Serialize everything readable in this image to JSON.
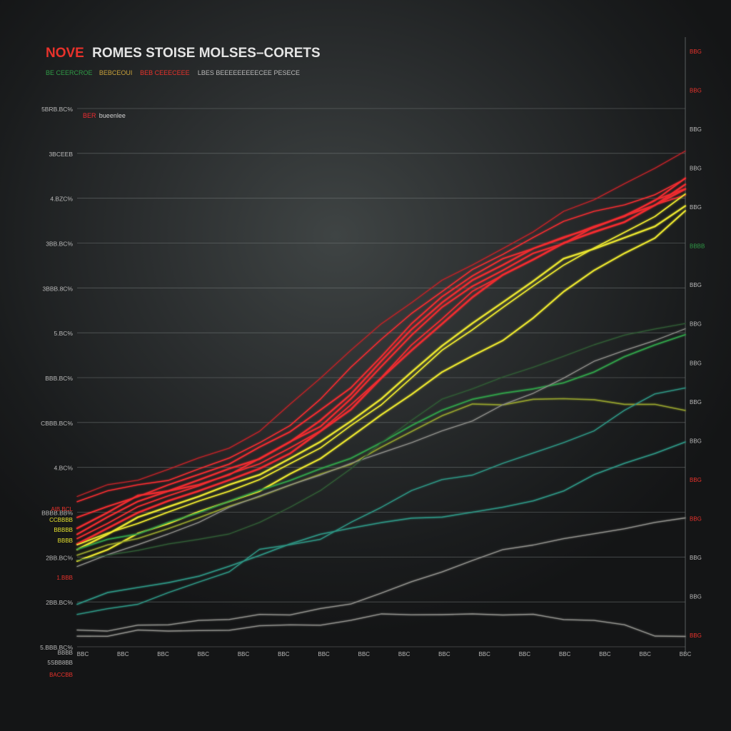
{
  "colors": {
    "title_accent": "#e8322b",
    "title_main": "#e4e4e4",
    "grid": "#7c8282",
    "axis_text": "#b9b9b9",
    "red": "#ee2b30",
    "yellow": "#e6e22e",
    "green": "#2f9a46",
    "olive": "#8e9a2c",
    "teal": "#2d8e7e",
    "gray": "#8a8a86",
    "dark_green": "#2f5a34"
  },
  "chart_data": {
    "type": "line",
    "title_accent": "NOVE",
    "title": "ROMES STOISE MOLSES–CORETS",
    "subtitle_parts": [
      {
        "text": "BE CEERCROE",
        "color": "#2f9a46"
      },
      {
        "text": "BEBCEOUI",
        "color": "#c8a13a"
      },
      {
        "text": "BEB CEEECEEE",
        "color": "#e8322b"
      },
      {
        "text": "LBES BEEEEEEEEECEE PESECE",
        "color": "#b9b9b9"
      }
    ],
    "inner_legend": [
      {
        "text": "BER",
        "color": "#ee2b30"
      },
      {
        "text": "bueenlee",
        "color": "#d0d0d0"
      }
    ],
    "y_left_ticks": [
      "5BRB.BC%",
      "3BCEEB",
      "4.BZC%",
      "3BB.BC%",
      "3BBB.8C%",
      "5.BC%",
      "BBB.BC%",
      "CBBB.BC%",
      "4.BC%",
      "BBBB.BB%",
      "2BB.BC%",
      "2BB.BC%",
      "5.BBB.BC%"
    ],
    "y_left_side_labels": [
      {
        "text": "AIB BCL",
        "color": "#e8322b"
      },
      {
        "text": "CCBBBB",
        "color": "#e6e22e"
      },
      {
        "text": "BBBBB",
        "color": "#e6e22e"
      },
      {
        "text": "BBBB",
        "color": "#e6e22e"
      },
      {
        "text": "1.BBB",
        "color": "#e8322b"
      }
    ],
    "y_left_bottom": [
      "BBBB",
      "5SBB8BB",
      "BACCBB"
    ],
    "y_right_ticks": [
      {
        "text": "BBG",
        "color": "#e8322b"
      },
      {
        "text": "BBG",
        "color": "#e8322b"
      },
      {
        "text": "BBG",
        "color": "#b9b9b9"
      },
      {
        "text": "BBG",
        "color": "#b9b9b9"
      },
      {
        "text": "BBG",
        "color": "#b9b9b9"
      },
      {
        "text": "BBBB",
        "color": "#2f9a46"
      },
      {
        "text": "BBG",
        "color": "#b9b9b9"
      },
      {
        "text": "BBG",
        "color": "#b9b9b9"
      },
      {
        "text": "BBG",
        "color": "#b9b9b9"
      },
      {
        "text": "BBG",
        "color": "#b9b9b9"
      },
      {
        "text": "BBG",
        "color": "#b9b9b9"
      },
      {
        "text": "BBG",
        "color": "#e8322b"
      },
      {
        "text": "BBG",
        "color": "#e8322b"
      },
      {
        "text": "BBG",
        "color": "#b9b9b9"
      },
      {
        "text": "BBG",
        "color": "#b9b9b9"
      },
      {
        "text": "BBG",
        "color": "#e8322b"
      }
    ],
    "x_ticks": [
      "BBC",
      "BBC",
      "BBC",
      "BBC",
      "BBC",
      "BBC",
      "BBC",
      "BBC",
      "BBC",
      "BBC",
      "BBC",
      "BBC",
      "BBC",
      "BBC",
      "BBC",
      "BBC"
    ],
    "xlim": [
      0,
      100
    ],
    "ylim": [
      0,
      100
    ],
    "grid": true,
    "series": [
      {
        "color": "#ee2b30",
        "width": 2.2,
        "x": [
          0,
          5,
          10,
          15,
          20,
          25,
          30,
          35,
          40,
          45,
          50,
          55,
          60,
          65,
          70,
          75,
          80,
          85,
          90,
          95,
          100
        ],
        "y": [
          22,
          25,
          28,
          29,
          31,
          33,
          35,
          38,
          42,
          47,
          53,
          59,
          64,
          68,
          71,
          74,
          76,
          78,
          80,
          82,
          86
        ]
      },
      {
        "color": "#ee2b30",
        "width": 2.0,
        "x": [
          0,
          5,
          10,
          15,
          20,
          25,
          30,
          35,
          40,
          45,
          50,
          55,
          60,
          65,
          70,
          75,
          80,
          85,
          90,
          95,
          100
        ],
        "y": [
          21,
          24,
          27,
          29,
          30,
          32,
          35,
          38,
          41,
          46,
          52,
          58,
          63,
          67,
          70,
          73,
          75,
          78,
          80,
          83,
          87
        ]
      },
      {
        "color": "#ee2b30",
        "width": 1.8,
        "x": [
          0,
          5,
          10,
          15,
          20,
          25,
          30,
          35,
          40,
          45,
          50,
          55,
          60,
          65,
          70,
          75,
          80,
          85,
          90,
          95,
          100
        ],
        "y": [
          24,
          26,
          28,
          30,
          32,
          34,
          37,
          40,
          44,
          48,
          54,
          60,
          65,
          69,
          72,
          74,
          76,
          78,
          80,
          83,
          85
        ]
      },
      {
        "color": "#ee2b30",
        "width": 1.6,
        "x": [
          0,
          5,
          10,
          15,
          20,
          25,
          30,
          35,
          40,
          45,
          50,
          55,
          60,
          65,
          70,
          75,
          80,
          85,
          90,
          95,
          100
        ],
        "y": [
          20,
          23,
          26,
          28,
          30,
          32,
          34,
          37,
          40,
          45,
          50,
          56,
          61,
          66,
          69,
          72,
          75,
          77,
          79,
          82,
          84
        ]
      },
      {
        "color": "#ee2b30",
        "width": 1.4,
        "x": [
          0,
          5,
          10,
          15,
          20,
          25,
          30,
          35,
          40,
          45,
          50,
          55,
          60,
          65,
          70,
          75,
          80,
          85,
          90,
          95,
          100
        ],
        "y": [
          27,
          29,
          30,
          31,
          33,
          35,
          38,
          41,
          46,
          52,
          57,
          62,
          66,
          70,
          73,
          76,
          79,
          81,
          82,
          84,
          87
        ]
      },
      {
        "color": "#b82226",
        "width": 1.2,
        "x": [
          0,
          5,
          10,
          15,
          20,
          25,
          30,
          35,
          40,
          45,
          50,
          55,
          60,
          65,
          70,
          75,
          80,
          85,
          90,
          95,
          100
        ],
        "y": [
          28,
          30,
          31,
          33,
          35,
          37,
          40,
          45,
          50,
          55,
          60,
          64,
          68,
          71,
          74,
          77,
          81,
          83,
          86,
          89,
          92
        ]
      },
      {
        "color": "#ee2b30",
        "width": 2.4,
        "x": [
          0,
          5,
          10,
          15,
          20,
          25,
          30,
          35,
          40,
          45,
          50,
          55,
          60,
          65,
          70,
          75,
          80,
          85,
          90,
          95,
          100
        ],
        "y": [
          19,
          22,
          25,
          27,
          29,
          31,
          33,
          36,
          40,
          44,
          50,
          55,
          60,
          65,
          69,
          72,
          75,
          77,
          79,
          82,
          85
        ]
      },
      {
        "color": "#e6e22e",
        "width": 2.2,
        "x": [
          0,
          5,
          10,
          15,
          20,
          25,
          30,
          35,
          40,
          45,
          50,
          55,
          60,
          65,
          70,
          75,
          80,
          85,
          90,
          95,
          100
        ],
        "y": [
          18,
          21,
          24,
          26,
          28,
          30,
          32,
          35,
          38,
          42,
          46,
          51,
          56,
          60,
          64,
          68,
          72,
          74,
          76,
          78,
          82
        ]
      },
      {
        "color": "#e6e22e",
        "width": 2.0,
        "x": [
          0,
          5,
          10,
          15,
          20,
          25,
          30,
          35,
          40,
          45,
          50,
          55,
          60,
          65,
          70,
          75,
          80,
          85,
          90,
          95,
          100
        ],
        "y": [
          16,
          18,
          21,
          23,
          25,
          27,
          29,
          32,
          35,
          39,
          43,
          47,
          51,
          54,
          57,
          61,
          66,
          70,
          73,
          76,
          81
        ]
      },
      {
        "color": "#e6e22e",
        "width": 1.6,
        "x": [
          0,
          5,
          10,
          15,
          20,
          25,
          30,
          35,
          40,
          45,
          50,
          55,
          60,
          65,
          70,
          75,
          80,
          85,
          90,
          95,
          100
        ],
        "y": [
          19,
          21,
          23,
          25,
          27,
          29,
          31,
          34,
          37,
          41,
          45,
          50,
          55,
          59,
          63,
          67,
          71,
          74,
          77,
          80,
          84
        ]
      },
      {
        "color": "#2f9a46",
        "width": 1.8,
        "x": [
          0,
          5,
          10,
          15,
          20,
          25,
          30,
          35,
          40,
          45,
          50,
          55,
          60,
          65,
          70,
          75,
          80,
          85,
          90,
          95,
          100
        ],
        "y": [
          18,
          20,
          21,
          23,
          25,
          27,
          29,
          31,
          33,
          35,
          38,
          41,
          44,
          46,
          47,
          48,
          49,
          51,
          54,
          56,
          58
        ]
      },
      {
        "color": "#8e9a2c",
        "width": 1.6,
        "x": [
          0,
          5,
          10,
          15,
          20,
          25,
          30,
          35,
          40,
          45,
          50,
          55,
          60,
          65,
          70,
          75,
          80,
          85,
          90,
          95,
          100
        ],
        "y": [
          17,
          19,
          20,
          22,
          24,
          26,
          28,
          30,
          32,
          34,
          37,
          40,
          43,
          45,
          45,
          46,
          46,
          46,
          45,
          45,
          44
        ]
      },
      {
        "color": "#2d8e7e",
        "width": 1.6,
        "x": [
          0,
          5,
          10,
          15,
          20,
          25,
          30,
          35,
          40,
          45,
          50,
          55,
          60,
          65,
          70,
          75,
          80,
          85,
          90,
          95,
          100
        ],
        "y": [
          8,
          10,
          11,
          12,
          13,
          15,
          17,
          19,
          21,
          22,
          23,
          24,
          24,
          25,
          26,
          27,
          29,
          32,
          34,
          36,
          38
        ]
      },
      {
        "color": "#2d8e7e",
        "width": 1.4,
        "x": [
          0,
          5,
          10,
          15,
          20,
          25,
          30,
          35,
          40,
          45,
          50,
          55,
          60,
          65,
          70,
          75,
          80,
          85,
          90,
          95,
          100
        ],
        "y": [
          6,
          7,
          8,
          10,
          12,
          14,
          18,
          19,
          20,
          23,
          26,
          29,
          31,
          32,
          34,
          36,
          38,
          40,
          44,
          47,
          48
        ]
      },
      {
        "color": "#8a8a86",
        "width": 1.4,
        "x": [
          0,
          5,
          10,
          15,
          20,
          25,
          30,
          35,
          40,
          45,
          50,
          55,
          60,
          65,
          70,
          75,
          80,
          85,
          90,
          95,
          100
        ],
        "y": [
          3,
          3,
          4,
          4,
          5,
          5,
          6,
          6,
          7,
          8,
          10,
          12,
          14,
          16,
          18,
          19,
          20,
          21,
          22,
          23,
          24
        ]
      },
      {
        "color": "#8a8a86",
        "width": 1.4,
        "x": [
          0,
          5,
          10,
          15,
          20,
          25,
          30,
          35,
          40,
          45,
          50,
          55,
          60,
          65,
          70,
          75,
          80,
          85,
          90,
          95,
          100
        ],
        "y": [
          2,
          2,
          3,
          3,
          3,
          3,
          4,
          4,
          4,
          5,
          6,
          6,
          6,
          6,
          6,
          6,
          5,
          5,
          4,
          2,
          2
        ]
      },
      {
        "color": "#8a8a86",
        "width": 1.2,
        "x": [
          0,
          5,
          10,
          15,
          20,
          25,
          30,
          35,
          40,
          45,
          50,
          55,
          60,
          65,
          70,
          75,
          80,
          85,
          90,
          95,
          100
        ],
        "y": [
          15,
          17,
          19,
          21,
          23,
          26,
          28,
          30,
          32,
          34,
          36,
          38,
          40,
          42,
          45,
          47,
          50,
          53,
          55,
          57,
          59
        ]
      },
      {
        "color": "#2f5a34",
        "width": 1.2,
        "x": [
          0,
          5,
          10,
          15,
          20,
          25,
          30,
          35,
          40,
          45,
          50,
          55,
          60,
          65,
          70,
          75,
          80,
          85,
          90,
          95,
          100
        ],
        "y": [
          16,
          17,
          18,
          19,
          20,
          21,
          23,
          26,
          29,
          33,
          38,
          42,
          46,
          48,
          50,
          52,
          54,
          56,
          58,
          59,
          60
        ]
      }
    ]
  }
}
